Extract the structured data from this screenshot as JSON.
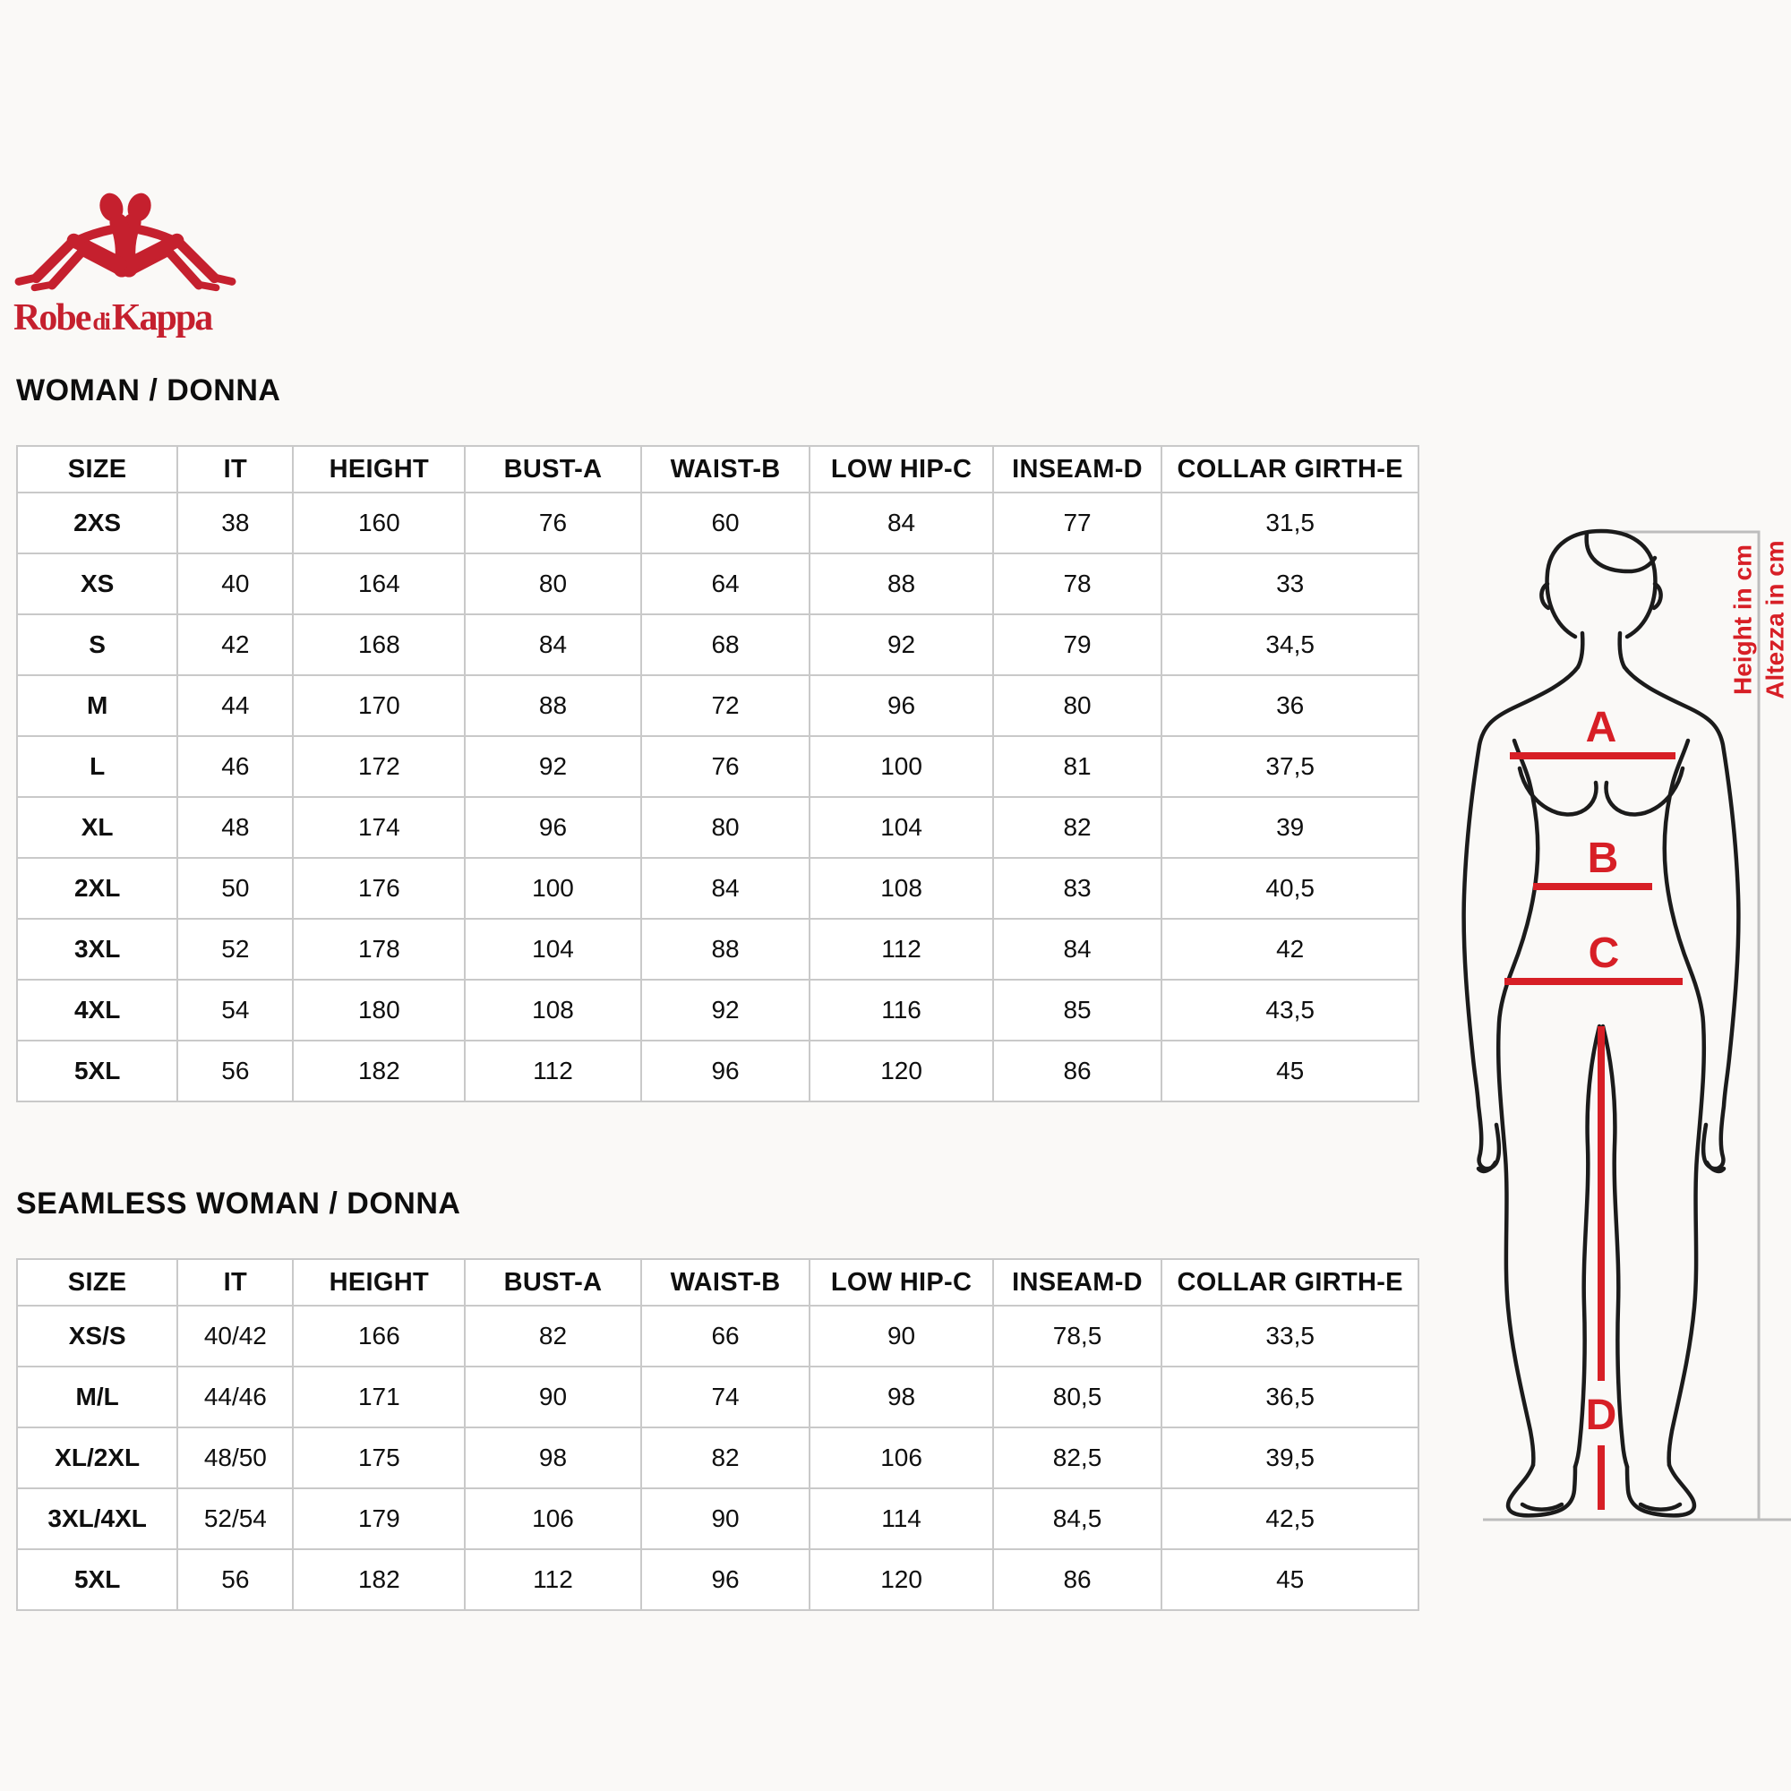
{
  "brand": {
    "word1": "Robe",
    "word2": "di",
    "word3": "Kappa"
  },
  "colors": {
    "brand_red": "#C5202E",
    "annotation_red": "#D71F26",
    "grid_gray": "#c9c9c9",
    "bracket_gray": "#bdbdbd",
    "text_black": "#141414"
  },
  "sections": [
    {
      "heading": "WOMAN / DONNA",
      "columns": [
        "SIZE",
        "IT",
        "HEIGHT",
        "BUST-A",
        "WAIST-B",
        "LOW HIP-C",
        "INSEAM-D",
        "COLLAR GIRTH-E"
      ],
      "rows": [
        [
          "2XS",
          "38",
          "160",
          "76",
          "60",
          "84",
          "77",
          "31,5"
        ],
        [
          "XS",
          "40",
          "164",
          "80",
          "64",
          "88",
          "78",
          "33"
        ],
        [
          "S",
          "42",
          "168",
          "84",
          "68",
          "92",
          "79",
          "34,5"
        ],
        [
          "M",
          "44",
          "170",
          "88",
          "72",
          "96",
          "80",
          "36"
        ],
        [
          "L",
          "46",
          "172",
          "92",
          "76",
          "100",
          "81",
          "37,5"
        ],
        [
          "XL",
          "48",
          "174",
          "96",
          "80",
          "104",
          "82",
          "39"
        ],
        [
          "2XL",
          "50",
          "176",
          "100",
          "84",
          "108",
          "83",
          "40,5"
        ],
        [
          "3XL",
          "52",
          "178",
          "104",
          "88",
          "112",
          "84",
          "42"
        ],
        [
          "4XL",
          "54",
          "180",
          "108",
          "92",
          "116",
          "85",
          "43,5"
        ],
        [
          "5XL",
          "56",
          "182",
          "112",
          "96",
          "120",
          "86",
          "45"
        ]
      ]
    },
    {
      "heading": "SEAMLESS WOMAN / DONNA",
      "columns": [
        "SIZE",
        "IT",
        "HEIGHT",
        "BUST-A",
        "WAIST-B",
        "LOW HIP-C",
        "INSEAM-D",
        "COLLAR GIRTH-E"
      ],
      "rows": [
        [
          "XS/S",
          "40/42",
          "166",
          "82",
          "66",
          "90",
          "78,5",
          "33,5"
        ],
        [
          "M/L",
          "44/46",
          "171",
          "90",
          "74",
          "98",
          "80,5",
          "36,5"
        ],
        [
          "XL/2XL",
          "48/50",
          "175",
          "98",
          "82",
          "106",
          "82,5",
          "39,5"
        ],
        [
          "3XL/4XL",
          "52/54",
          "179",
          "106",
          "90",
          "114",
          "84,5",
          "42,5"
        ],
        [
          "5XL",
          "56",
          "182",
          "112",
          "96",
          "120",
          "86",
          "45"
        ]
      ]
    }
  ],
  "figure": {
    "labels": {
      "bust": "A",
      "waist": "B",
      "hip": "C",
      "inseam": "D"
    },
    "height_caption_en": "Height in cm",
    "height_caption_it": "Altezza in cm"
  }
}
